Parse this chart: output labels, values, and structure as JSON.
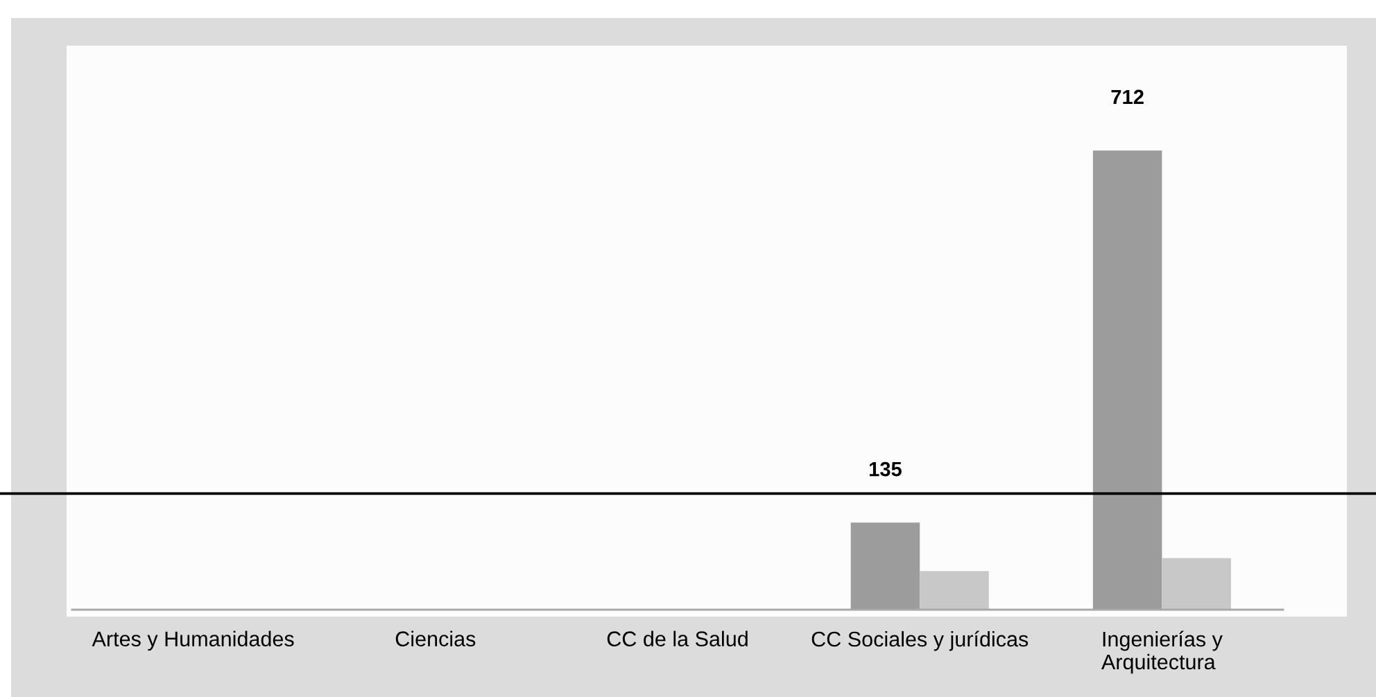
{
  "chart_data": {
    "type": "bar",
    "categories": [
      "Artes y Humanidades",
      "Ciencias",
      "CC de la Salud",
      "CC Sociales y jurídicas",
      "Ingenierías y\nArquitectura"
    ],
    "series": [
      {
        "color": "#9c9c9c",
        "values": [
          null,
          null,
          null,
          135,
          712
        ],
        "value_labels": [
          null,
          null,
          null,
          "135",
          "712"
        ]
      },
      {
        "color": "#c8c8c8",
        "values": [
          null,
          null,
          null,
          60,
          80
        ]
      }
    ],
    "ref_lines": [
      {
        "axis": "y",
        "value": 180,
        "color": "#000000"
      }
    ]
  }
}
